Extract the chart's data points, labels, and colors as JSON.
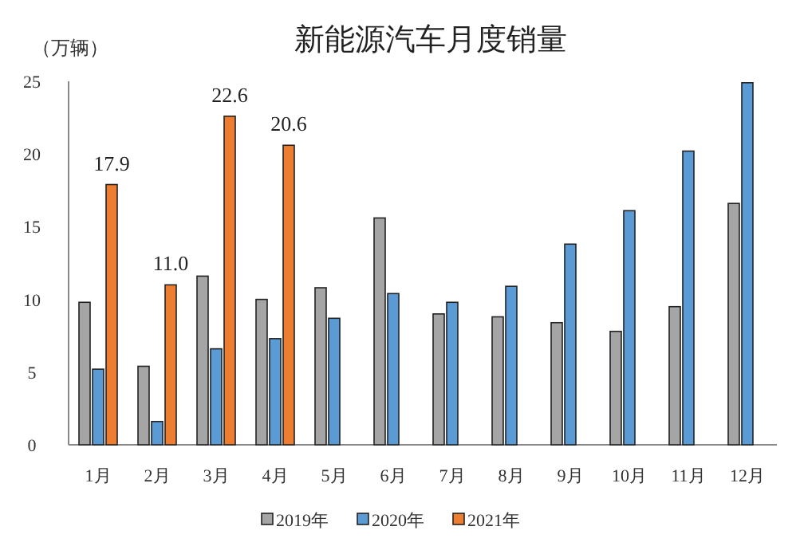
{
  "chart_data": {
    "type": "bar",
    "title": "新能源汽车月度销量",
    "ylabel": "（万辆）",
    "categories": [
      "1月",
      "2月",
      "3月",
      "4月",
      "5月",
      "6月",
      "7月",
      "8月",
      "9月",
      "10月",
      "11月",
      "12月"
    ],
    "series": [
      {
        "name": "2019年",
        "color": "#a5a5a5",
        "values": [
          9.8,
          5.4,
          11.6,
          10.0,
          10.8,
          15.6,
          9.0,
          8.8,
          8.4,
          7.8,
          9.5,
          16.6
        ]
      },
      {
        "name": "2020年",
        "color": "#5b9bd5",
        "values": [
          5.2,
          1.6,
          6.6,
          7.3,
          8.7,
          10.4,
          9.8,
          10.9,
          13.8,
          16.1,
          20.2,
          24.9
        ]
      },
      {
        "name": "2021年",
        "color": "#ed7d31",
        "values": [
          17.9,
          11.0,
          22.6,
          20.6,
          null,
          null,
          null,
          null,
          null,
          null,
          null,
          null
        ],
        "value_labels": [
          "17.9",
          "11.0",
          "22.6",
          "20.6",
          null,
          null,
          null,
          null,
          null,
          null,
          null,
          null
        ]
      }
    ],
    "ylim": [
      0,
      25
    ],
    "yticks": [
      0,
      5,
      10,
      15,
      20,
      25
    ],
    "grid": false,
    "legend": "bottom"
  }
}
